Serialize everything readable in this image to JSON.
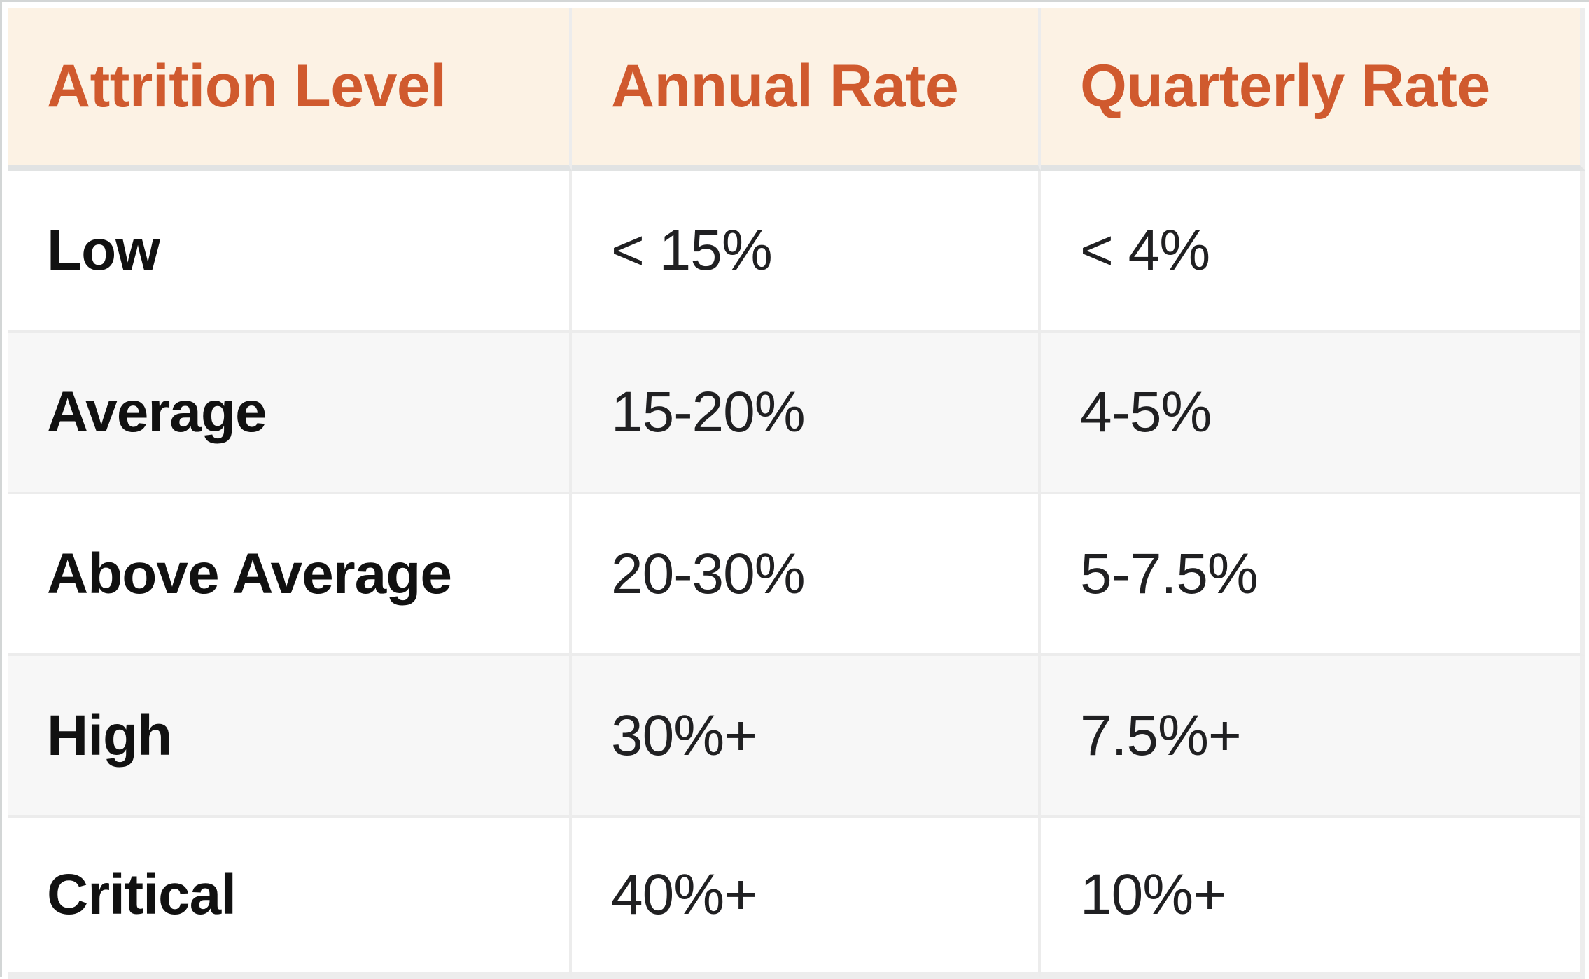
{
  "chart_data": {
    "type": "table",
    "columns": [
      "Attrition Level",
      "Annual Rate",
      "Quarterly Rate"
    ],
    "rows": [
      [
        "Low",
        "< 15%",
        "< 4%"
      ],
      [
        "Average",
        "15-20%",
        "4-5%"
      ],
      [
        "Above Average",
        "20-30%",
        "5-7.5%"
      ],
      [
        "High",
        "30%+",
        "7.5%+"
      ],
      [
        "Critical",
        "40%+",
        "10%+"
      ]
    ],
    "layout_hints": {
      "header_background": "#fcf2e4",
      "header_text_color": "#d05a2e",
      "alternating_row_background": "#f7f7f7",
      "grid_line_color": "#ececec",
      "body_text_color": "#202022",
      "level_column_bold": true
    }
  }
}
